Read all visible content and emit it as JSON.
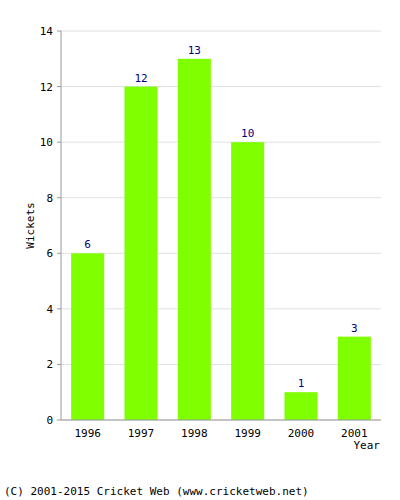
{
  "chart_data": {
    "type": "bar",
    "categories": [
      "1996",
      "1997",
      "1998",
      "1999",
      "2000",
      "2001"
    ],
    "values": [
      6,
      12,
      13,
      10,
      1,
      3
    ],
    "color": "#80ff00",
    "ylim": [
      0,
      14
    ],
    "yticks": [
      0,
      2,
      4,
      6,
      8,
      10,
      12,
      14
    ],
    "grid": true,
    "data_labels": true,
    "y_label": "Wickets",
    "x_label": "Year",
    "annotations": [
      "(C) 2001-2015 Cricket Web (www.cricketweb.net)"
    ]
  }
}
